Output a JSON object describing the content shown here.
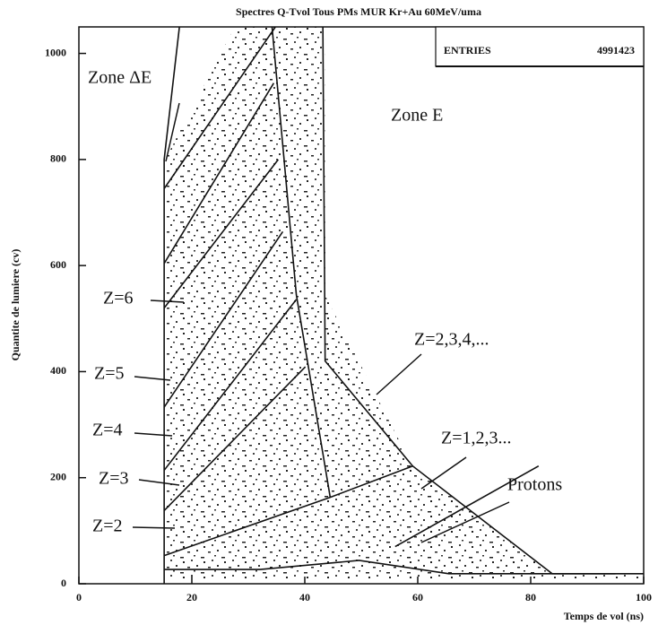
{
  "chart_data": {
    "type": "scatter",
    "title": "Spectres Q-Tvol Tous PMs MUR Kr+Au 60MeV/uma",
    "x_label": "Temps de vol (ns)",
    "y_label": "Quantite de lumiere (cv)",
    "xlim": [
      0,
      100
    ],
    "ylim": [
      0,
      1050
    ],
    "xticks": [
      0,
      20,
      40,
      60,
      80,
      100
    ],
    "yticks": [
      0,
      200,
      400,
      600,
      800,
      1000
    ],
    "stats": {
      "label": "ENTRIES",
      "value": 4991423
    },
    "annotations": [
      "Zone ΔE",
      "Zone E",
      "Z=6",
      "Z=5",
      "Z=4",
      "Z=3",
      "Z=2",
      "Z=2,3,4,...",
      "Z=1,2,3...",
      "Protons"
    ],
    "color": "#111111",
    "boundaries": [
      {
        "x": [
          15.1,
          15.1,
          17.8
        ],
        "y": [
          0,
          800,
          1050
        ]
      },
      {
        "x": [
          34.2,
          38.5,
          44.5
        ],
        "y": [
          1050,
          545,
          163
        ]
      },
      {
        "x": [
          43.2,
          43.6,
          59.1,
          83.8,
          100
        ],
        "y": [
          1050,
          420,
          222,
          19,
          19
        ]
      },
      {
        "x": [
          15.1,
          34.8
        ],
        "y": [
          745,
          1050
        ]
      },
      {
        "x": [
          15.1,
          34.5
        ],
        "y": [
          604,
          944
        ]
      },
      {
        "x": [
          15.1,
          35.3
        ],
        "y": [
          520,
          800
        ]
      },
      {
        "x": [
          15.1,
          36.1
        ],
        "y": [
          333,
          664
        ]
      },
      {
        "x": [
          15.1,
          38.5
        ],
        "y": [
          214,
          536
        ]
      },
      {
        "x": [
          15.1,
          40.1
        ],
        "y": [
          138,
          409
        ]
      },
      {
        "x": [
          15.1,
          44.5,
          59.1
        ],
        "y": [
          53,
          163,
          222
        ]
      },
      {
        "x": [
          56.0,
          81.4
        ],
        "y": [
          70,
          222
        ]
      },
      {
        "x": [
          15.1,
          32.1,
          49.6,
          65.5,
          95
        ],
        "y": [
          27,
          27,
          44,
          19,
          19
        ]
      }
    ]
  }
}
